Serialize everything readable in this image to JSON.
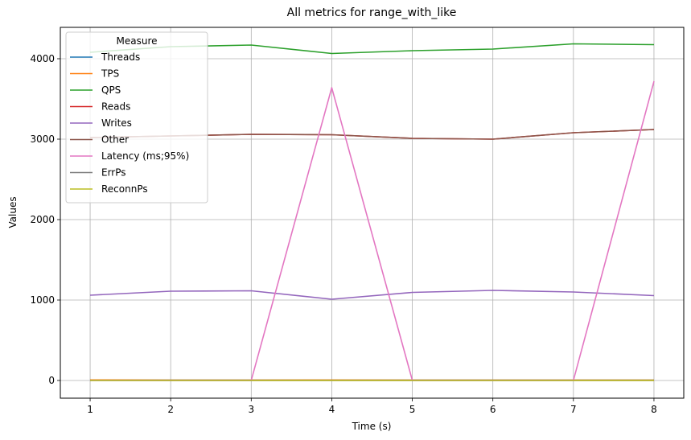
{
  "chart_data": {
    "type": "line",
    "title": "All metrics for range_with_like",
    "xlabel": "Time (s)",
    "ylabel": "Values",
    "xlim": [
      0.63,
      8.37
    ],
    "ylim": [
      -220,
      4390
    ],
    "x_ticks": [
      1,
      2,
      3,
      4,
      5,
      6,
      7,
      8
    ],
    "y_ticks": [
      0,
      1000,
      2000,
      3000,
      4000
    ],
    "grid": true,
    "legend_title": "Measure",
    "legend_position": "top-left",
    "x": [
      1,
      2,
      3,
      4,
      5,
      6,
      7,
      8
    ],
    "series": [
      {
        "name": "Threads",
        "color": "#1f77b4",
        "values": [
          4,
          4,
          4,
          4,
          4,
          4,
          4,
          4
        ]
      },
      {
        "name": "TPS",
        "color": "#ff7f0e",
        "values": [
          7,
          5,
          5,
          6,
          5,
          5,
          5,
          5
        ]
      },
      {
        "name": "QPS",
        "color": "#2ca02c",
        "values": [
          4080,
          4150,
          4170,
          4065,
          4100,
          4120,
          4185,
          4175
        ]
      },
      {
        "name": "Reads",
        "color": "#d62728",
        "values": [
          3020,
          3040,
          3060,
          3055,
          3010,
          3000,
          3080,
          3120
        ]
      },
      {
        "name": "Writes",
        "color": "#9467bd",
        "values": [
          1060,
          1110,
          1115,
          1010,
          1095,
          1120,
          1100,
          1055
        ]
      },
      {
        "name": "Other",
        "color": "#8c564b",
        "values": [
          3020,
          3040,
          3060,
          3055,
          3010,
          3000,
          3080,
          3120
        ]
      },
      {
        "name": "Latency (ms;95%)",
        "color": "#e377c2",
        "values": [
          2,
          1,
          1,
          3640,
          1,
          1,
          1,
          3720
        ]
      },
      {
        "name": "ErrPs",
        "color": "#7f7f7f",
        "values": [
          0,
          0,
          0,
          0,
          0,
          0,
          0,
          0
        ]
      },
      {
        "name": "ReconnPs",
        "color": "#bcbd22",
        "values": [
          0,
          0,
          0,
          0,
          0,
          0,
          0,
          0
        ]
      }
    ]
  }
}
